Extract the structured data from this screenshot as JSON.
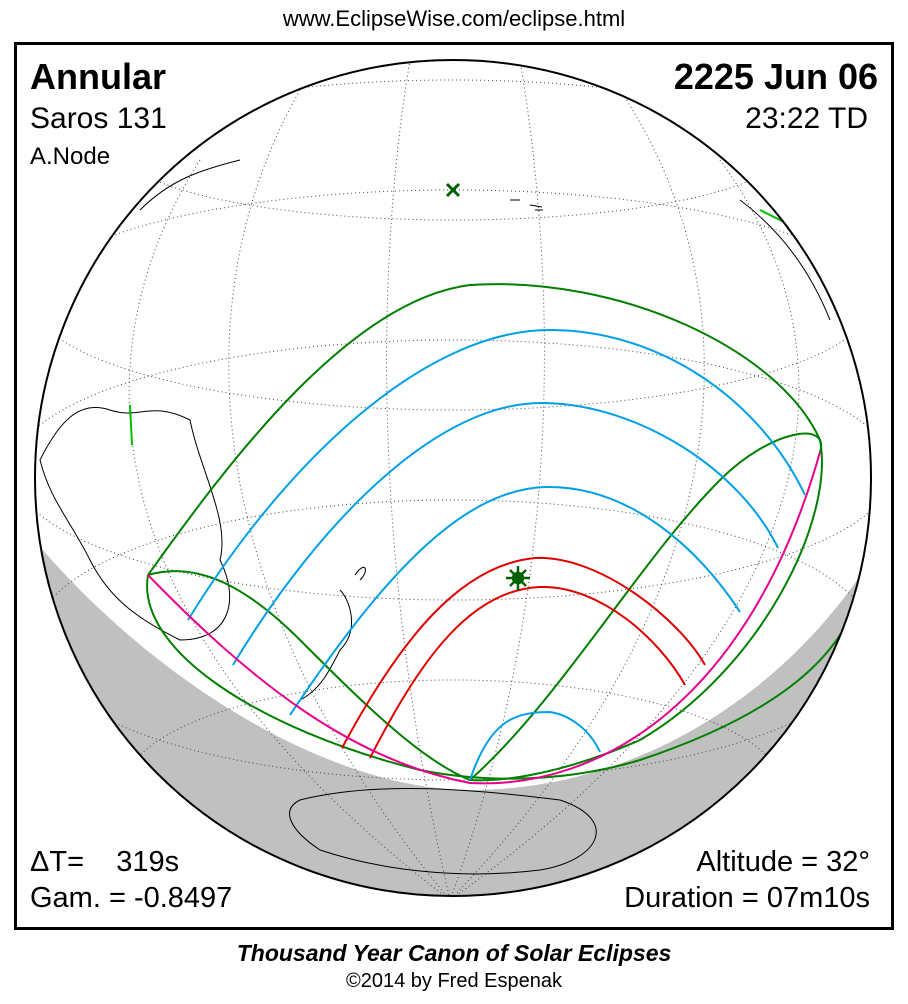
{
  "header": {
    "url": "www.EclipseWise.com/eclipse.html"
  },
  "eclipse": {
    "type": "Annular",
    "saros": "Saros 131",
    "node": "A.Node",
    "date": "2225 Jun 06",
    "time": "23:22 TD",
    "delta_t": "ΔT=    319s",
    "gamma": "Gam. = -0.8497",
    "altitude": "Altitude = 32°",
    "duration": "Duration = 07m10s"
  },
  "footer": {
    "title": "Thousand Year Canon of Solar Eclipses",
    "copyright": "©2014 by Fred Espenak"
  },
  "colors": {
    "penumbra": "#008000",
    "magnitude": "#00a0e8",
    "central_path": "#e00000",
    "limits": "#e8008c",
    "night": "#c0c0c0"
  },
  "markers": {
    "greatest_eclipse": "star-icon",
    "subsolar_point": "x-icon"
  }
}
